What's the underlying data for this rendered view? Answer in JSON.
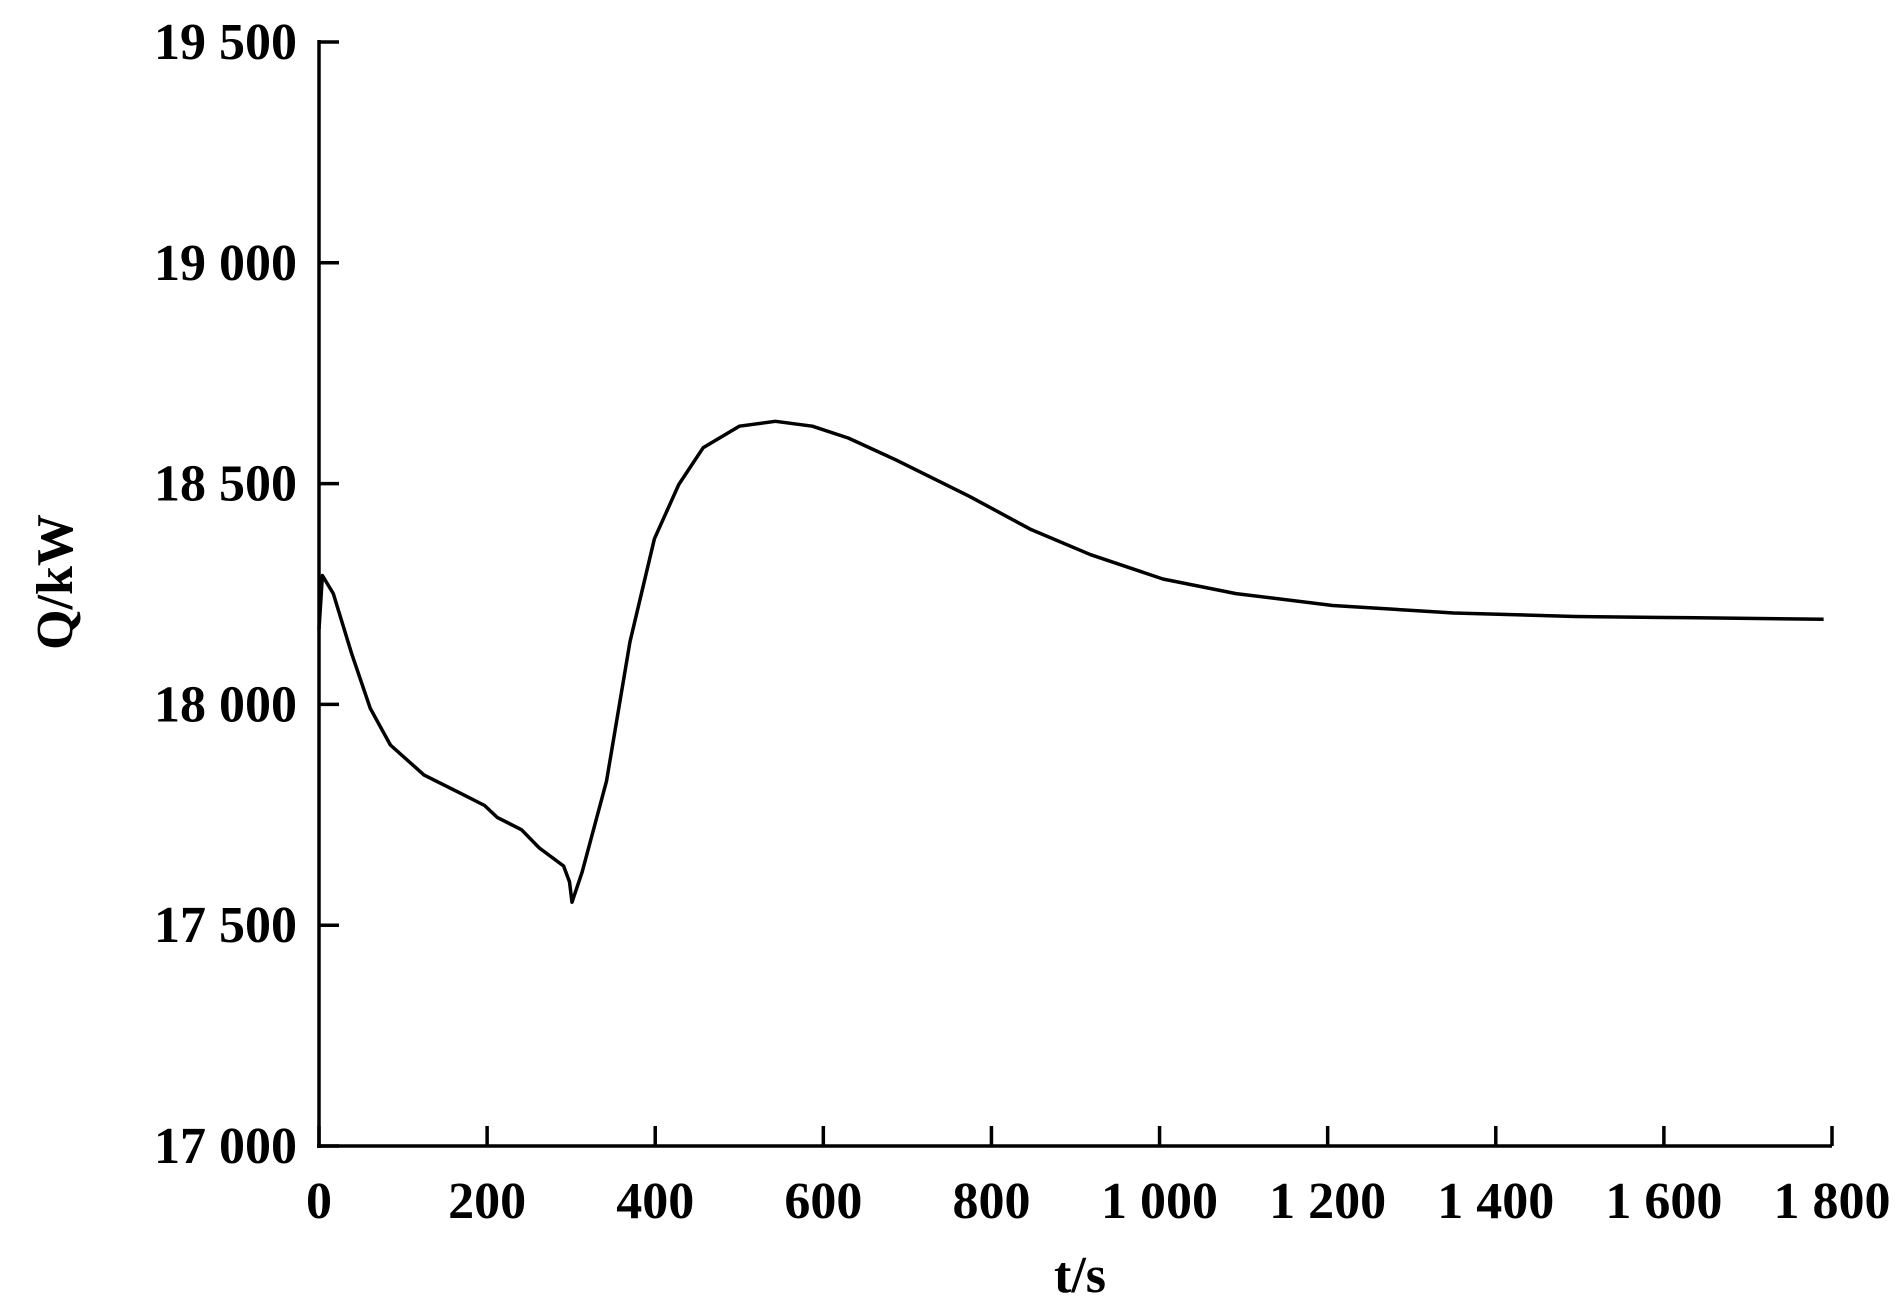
{
  "chart_data": {
    "type": "line",
    "x_label": "t/s",
    "y_label": "Q/kW",
    "xlim": [
      0,
      1800
    ],
    "xticks": [
      0,
      200,
      400,
      600,
      800,
      {
        "value": 1000,
        "label": "1 000"
      },
      {
        "value": 1200,
        "label": "1 200"
      },
      {
        "value": 1400,
        "label": "1 400"
      },
      {
        "value": 1600,
        "label": "1 600"
      },
      {
        "value": 1800,
        "label": "1 800"
      }
    ],
    "ylim": [
      17000,
      19500
    ],
    "yticks": [
      {
        "value": 17000,
        "label": "17 000"
      },
      {
        "value": 17500,
        "label": "17 500"
      },
      {
        "value": 18000,
        "label": "18 000"
      },
      {
        "value": 18500,
        "label": "18 500"
      },
      {
        "value": 19000,
        "label": "19 000"
      },
      {
        "value": 19500,
        "label": "19 500"
      }
    ],
    "grid": false,
    "series": [
      {
        "color": "#000000",
        "x": [
          0,
          4,
          17,
          39,
          61,
          85,
          125,
          169,
          197,
          212,
          241,
          262,
          291,
          298,
          301,
          313,
          342,
          370,
          399,
          428,
          457,
          500,
          543,
          587,
          630,
          687,
          774,
          846,
          918,
          1004,
          1091,
          1206,
          1350,
          1494,
          1638,
          1790
        ],
        "values": [
          18170,
          18292,
          18251,
          18114,
          17991,
          17908,
          17840,
          17798,
          17771,
          17744,
          17716,
          17675,
          17634,
          17598,
          17552,
          17620,
          17826,
          18142,
          18375,
          18498,
          18581,
          18630,
          18641,
          18630,
          18603,
          18553,
          18471,
          18397,
          18339,
          18284,
          18251,
          18224,
          18207,
          18199,
          18196,
          18193
        ]
      }
    ]
  }
}
